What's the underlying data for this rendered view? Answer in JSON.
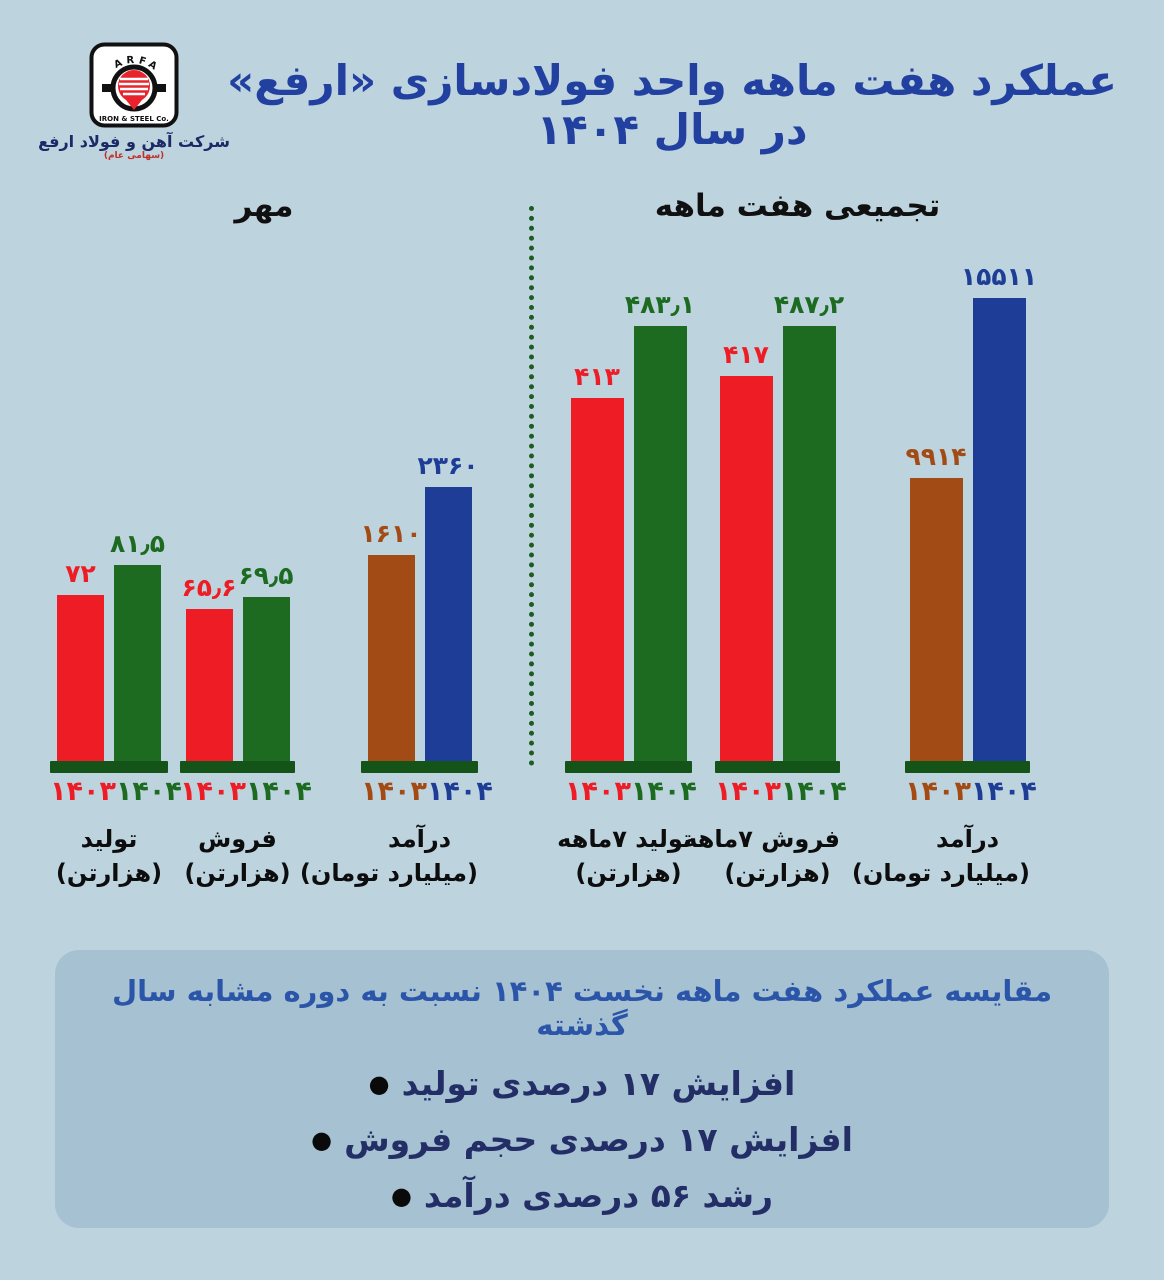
{
  "page": {
    "background_color": "#bdd3de",
    "summary_box_color": "#a6c1d1",
    "title_color": "#2240a0",
    "divider_color": "#1d5c20",
    "pedestal_color": "#155418"
  },
  "logo": {
    "brand_arc": "A R F A",
    "brand_bottom": "IRON & STEEL Co.",
    "company_name": "شرکت آهن و فولاد ارفع",
    "company_type": "(سهامی عام)"
  },
  "header": {
    "title": "عملکرد هفت ماهه واحد فولادسازی «ارفع» در سال ۱۴۰۴"
  },
  "sections": {
    "left_title": "مهر",
    "right_title": "تجمیعی هفت ماهه"
  },
  "colors": {
    "bar_1403": "#ee1d25",
    "bar_1404": "#1c6b21",
    "bar_revenue_1403": "#a34b15",
    "bar_revenue_1404": "#1e3d96"
  },
  "chart_data": [
    {
      "type": "bar",
      "title": "مهر",
      "legend_position": "below-bars",
      "grid": false,
      "groups": [
        {
          "category": "تولید",
          "unit": "(هزارتن)",
          "series": [
            {
              "year": "۱۴۰۳",
              "value": 72,
              "label": "۷۲",
              "color": "#ee1d25"
            },
            {
              "year": "۱۴۰۴",
              "value": 81.5,
              "label": "۸۱٫۵",
              "color": "#1c6b21"
            }
          ]
        },
        {
          "category": "فروش",
          "unit": "(هزارتن)",
          "series": [
            {
              "year": "۱۴۰۳",
              "value": 65.6,
              "label": "۶۵٫۶",
              "color": "#ee1d25"
            },
            {
              "year": "۱۴۰۴",
              "value": 69.5,
              "label": "۶۹٫۵",
              "color": "#1c6b21"
            }
          ]
        },
        {
          "category": "درآمد",
          "unit": "(میلیارد تومان)",
          "series": [
            {
              "year": "۱۴۰۳",
              "value": 1610,
              "label": "۱۶۱۰",
              "color": "#a34b15"
            },
            {
              "year": "۱۴۰۴",
              "value": 2360,
              "label": "۲۳۶۰",
              "color": "#1e3d96"
            }
          ]
        }
      ]
    },
    {
      "type": "bar",
      "title": "تجمیعی هفت ماهه",
      "legend_position": "below-bars",
      "grid": false,
      "groups": [
        {
          "category": "تولید ۷ماهه",
          "unit": "(هزارتن)",
          "series": [
            {
              "year": "۱۴۰۳",
              "value": 413,
              "label": "۴۱۳",
              "color": "#ee1d25"
            },
            {
              "year": "۱۴۰۴",
              "value": 483.1,
              "label": "۴۸۳٫۱",
              "color": "#1c6b21"
            }
          ]
        },
        {
          "category": "فروش ۷ماهه",
          "unit": "(هزارتن)",
          "series": [
            {
              "year": "۱۴۰۳",
              "value": 417,
              "label": "۴۱۷",
              "color": "#ee1d25"
            },
            {
              "year": "۱۴۰۴",
              "value": 487.2,
              "label": "۴۸۷٫۲",
              "color": "#1c6b21"
            }
          ]
        },
        {
          "category": "درآمد",
          "unit": "(میلیارد تومان)",
          "series": [
            {
              "year": "۱۴۰۳",
              "value": 9914,
              "label": "۹۹۱۴",
              "color": "#a34b15"
            },
            {
              "year": "۱۴۰۴",
              "value": 15511,
              "label": "۱۵۵۱۱",
              "color": "#1e3d96"
            }
          ]
        }
      ]
    }
  ],
  "summary": {
    "heading": "مقایسه عملکرد هفت ماهه نخست ۱۴۰۴ نسبت به دوره مشابه سال گذشته",
    "bullets": [
      {
        "bullet": "●",
        "text": "افزایش ۱۷ درصدی تولید"
      },
      {
        "bullet": "●",
        "text": "افزایش ۱۷ درصدی حجم فروش"
      },
      {
        "bullet": "●",
        "text": "رشد ۵۶ درصدی درآمد"
      }
    ]
  }
}
